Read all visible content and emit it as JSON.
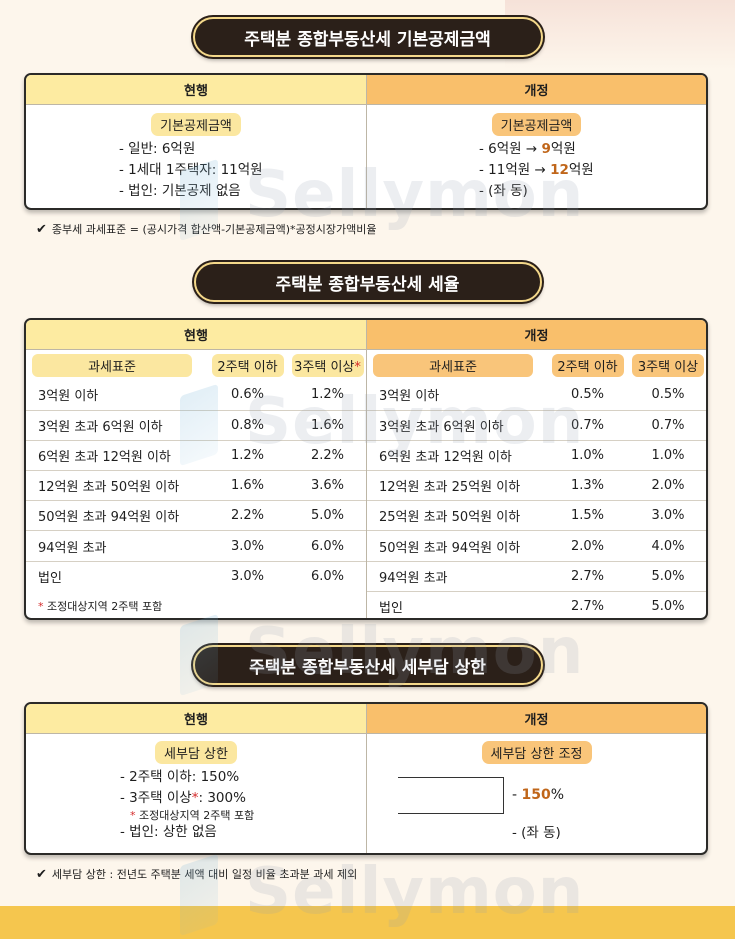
{
  "section1": {
    "title": "주택분 종합부동산세 기본공제금액",
    "current_header": "현행",
    "revised_header": "개정",
    "current_tag": "기본공제금액",
    "revised_tag": "기본공제금액",
    "current_items": [
      "- 일반: 6억원",
      "- 1세대 1주택자: 11억원",
      "- 법인: 기본공제 없음"
    ],
    "revised_items": [
      {
        "pre": "- 6억원 → ",
        "hl": "9",
        "post": "억원"
      },
      {
        "pre": "- 11억원 → ",
        "hl": "12",
        "post": "억원"
      },
      {
        "pre": "- (좌 동)",
        "hl": "",
        "post": ""
      }
    ],
    "note": "종부세 과세표준 = (공시가격 합산액-기본공제금액)*공정시장가액비율"
  },
  "section2": {
    "title": "주택분 종합부동산세 세율",
    "current_header": "현행",
    "revised_header": "개정",
    "col_headers": [
      "과세표준",
      "2주택 이하",
      "3주택 이상"
    ],
    "col_headers_star": "*",
    "current_rows": [
      [
        "3억원 이하",
        "0.6%",
        "1.2%"
      ],
      [
        "3억원 초과 6억원 이하",
        "0.8%",
        "1.6%"
      ],
      [
        "6억원 초과 12억원 이하",
        "1.2%",
        "2.2%"
      ],
      [
        "12억원 초과 50억원 이하",
        "1.6%",
        "3.6%"
      ],
      [
        "50억원 초과 94억원 이하",
        "2.2%",
        "5.0%"
      ],
      [
        "94억원 초과",
        "3.0%",
        "6.0%"
      ],
      [
        "법인",
        "3.0%",
        "6.0%"
      ]
    ],
    "current_footnote_star": "*",
    "current_footnote": "조정대상지역 2주택 포함",
    "revised_rows": [
      [
        "3억원 이하",
        "0.5%",
        "0.5%"
      ],
      [
        "3억원 초과 6억원 이하",
        "0.7%",
        "0.7%"
      ],
      [
        "6억원 초과 12억원 이하",
        "1.0%",
        "1.0%"
      ],
      [
        "12억원 초과 25억원 이하",
        "1.3%",
        "2.0%"
      ],
      [
        "25억원 초과 50억원 이하",
        "1.5%",
        "3.0%"
      ],
      [
        "50억원 초과 94억원 이하",
        "2.0%",
        "4.0%"
      ],
      [
        "94억원 초과",
        "2.7%",
        "5.0%"
      ],
      [
        "법인",
        "2.7%",
        "5.0%"
      ]
    ]
  },
  "section3": {
    "title": "주택분 종합부동산세 세부담 상한",
    "current_header": "현행",
    "revised_header": "개정",
    "current_tag": "세부담 상한",
    "revised_tag": "세부담 상한 조정",
    "current_item1": "- 2주택 이하: 150%",
    "current_item2_pre": "- 3주택 이상",
    "current_item2_star": "*",
    "current_item2_post": ": 300%",
    "current_subnote_star": "*",
    "current_subnote": " 조정대상지역 2주택 포함",
    "current_item3": "- 법인:  상한 없음",
    "revised_pre": "- ",
    "revised_hl": "150",
    "revised_post": "%",
    "revised_item2": "- (좌 동)",
    "note": "세부담 상한 : 전년도 주택분 세액 대비 일정 비율 초과분 과세 제외"
  },
  "watermark": "Sellymon",
  "colors": {
    "pill_bg": "#2b2019",
    "current_bg": "#fdeba1",
    "revised_bg": "#f9bf6b",
    "highlight": "#c0661a",
    "accent_red": "#d42b2b",
    "bottom_bar": "#f5c64e"
  }
}
